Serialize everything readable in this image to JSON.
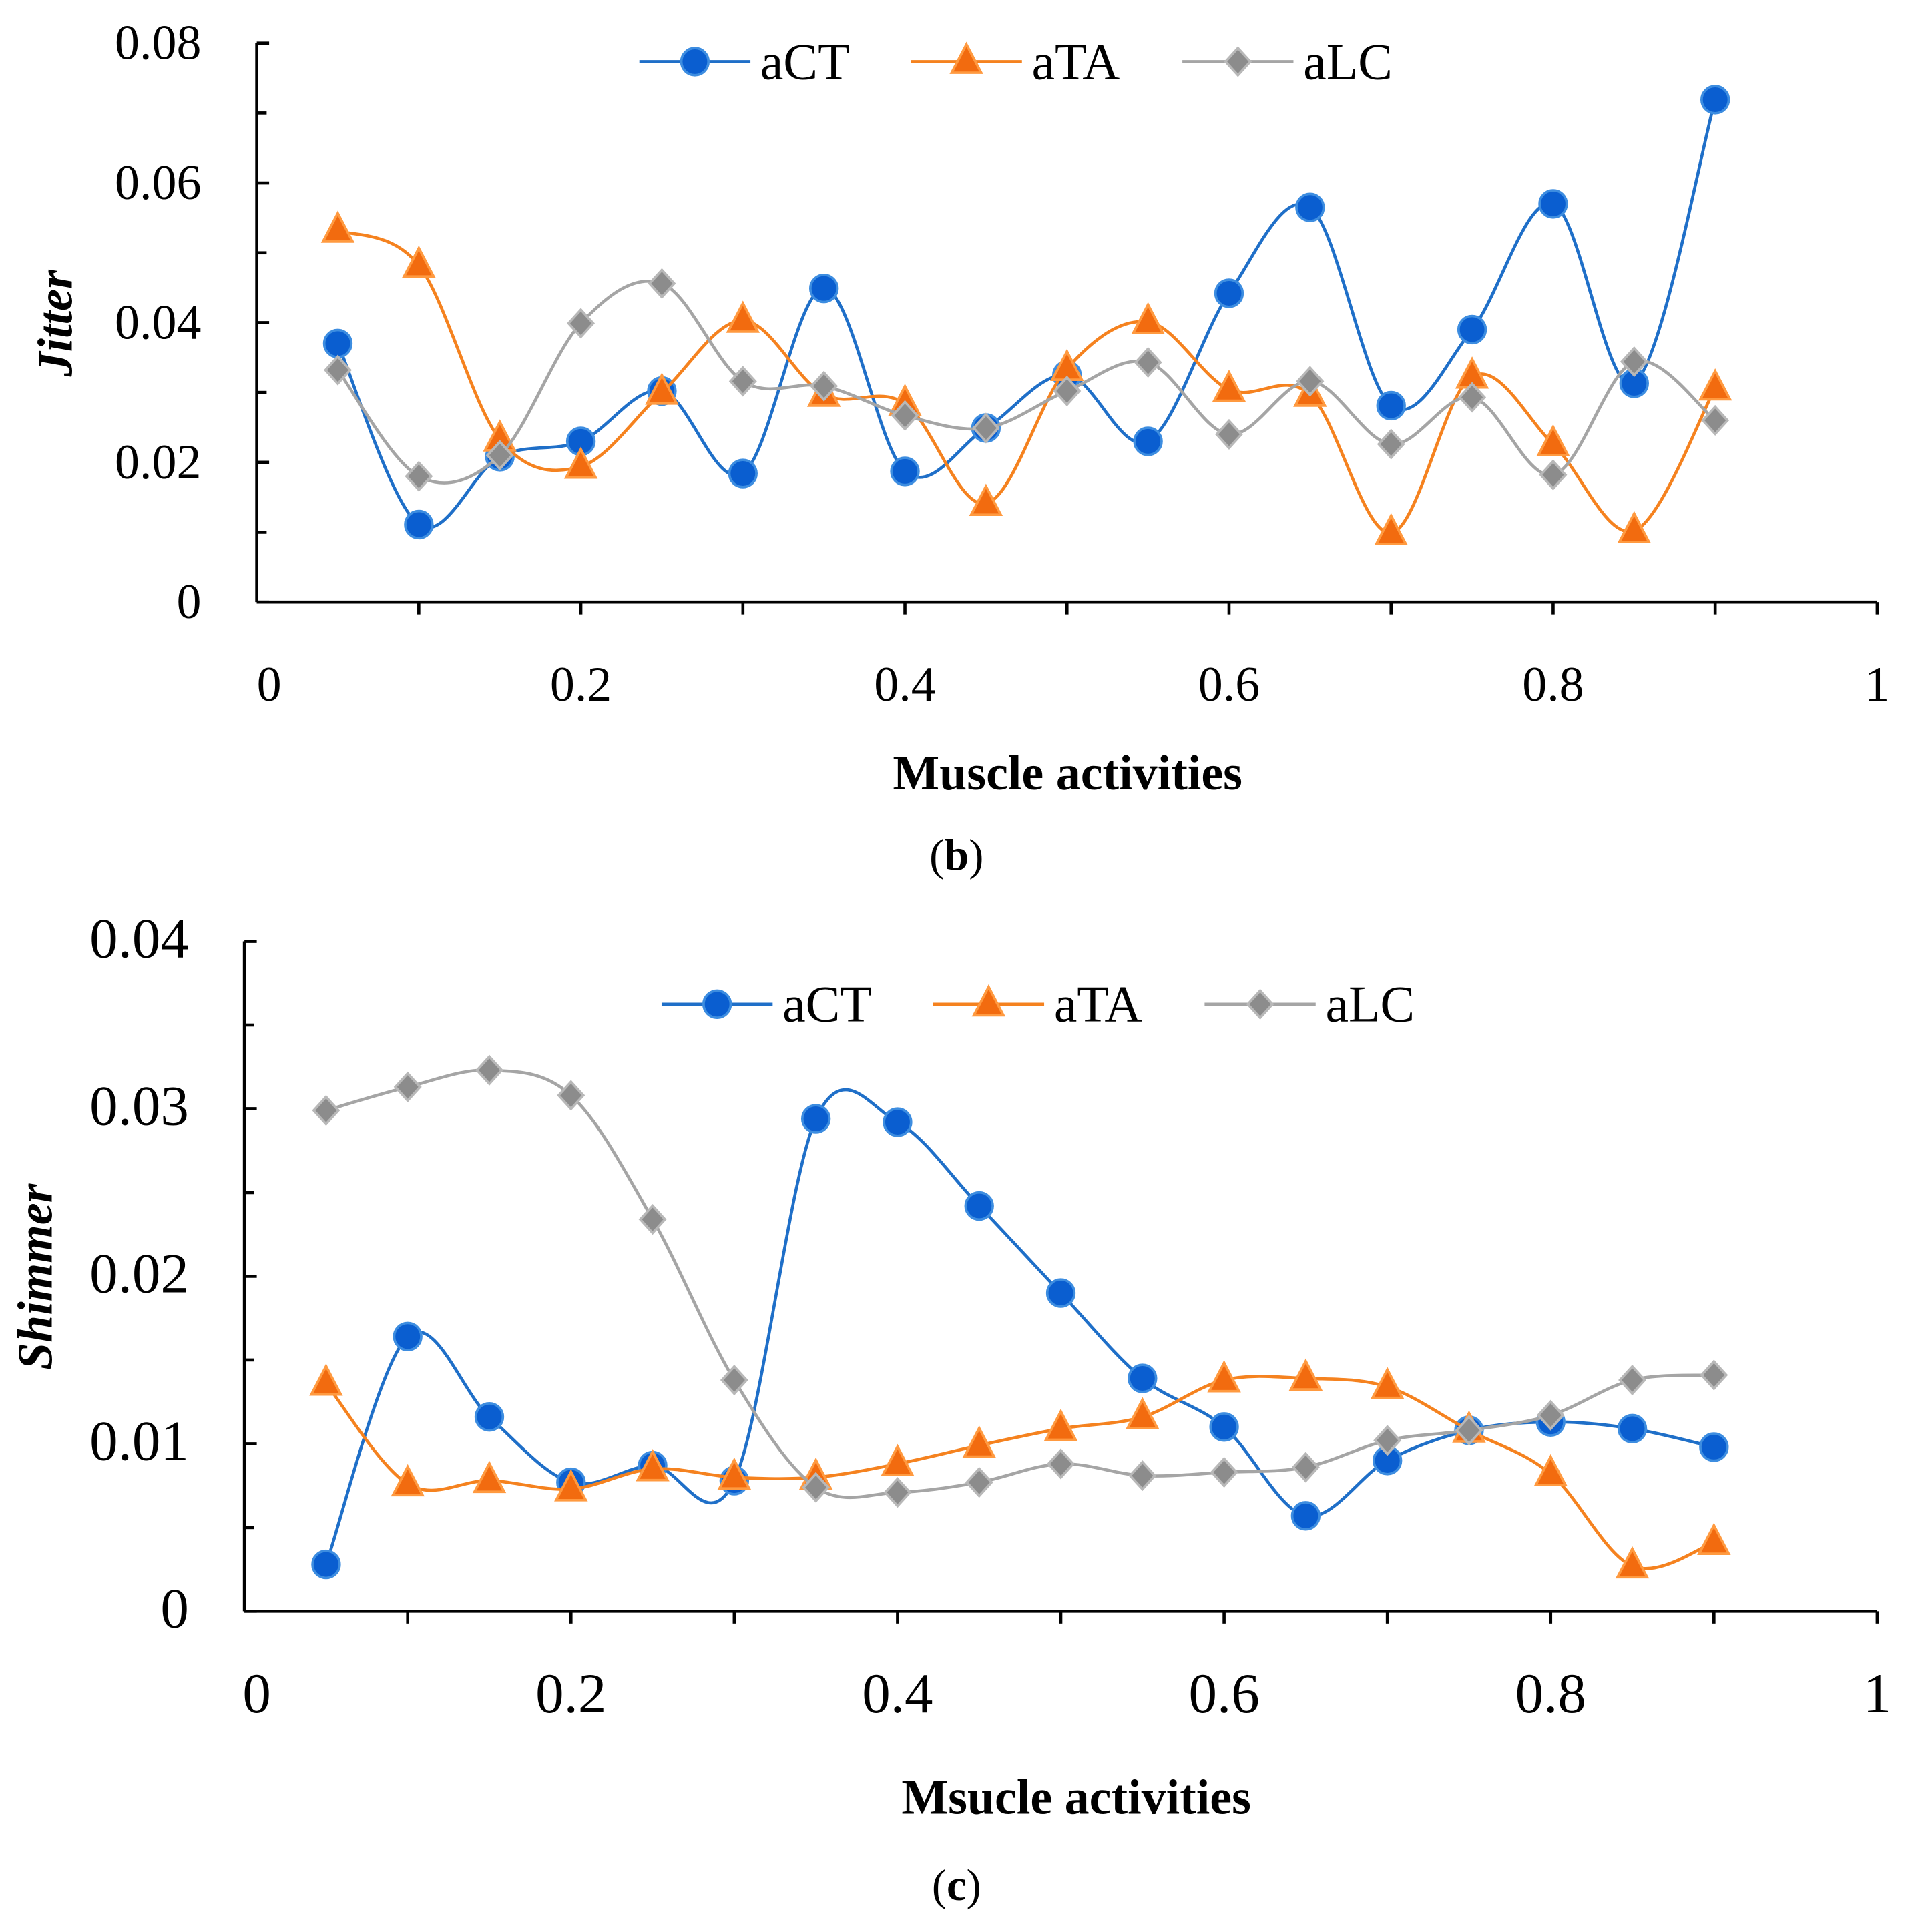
{
  "colors": {
    "aCT": "#1f6fc8",
    "aTA": "#f5821f",
    "aLC": "#a5a5a5",
    "aCT_marker": "#0a5ed0",
    "aTA_marker": "#f26b0f",
    "aLC_marker": "#8c8c8c"
  },
  "chart_data": [
    {
      "type": "line",
      "caption": "(b)",
      "caption_letter": "b",
      "xlabel": "Muscle activities",
      "ylabel": "Jitter",
      "xlim": [
        0,
        1
      ],
      "ylim": [
        0,
        0.08
      ],
      "xticks": [
        "0",
        "0.2",
        "0.4",
        "0.6",
        "0.8",
        "1"
      ],
      "yticks": [
        "0",
        "0.02",
        "0.04",
        "0.06",
        "0.08"
      ],
      "legend_position": "top-center",
      "x": [
        0.05,
        0.1,
        0.15,
        0.2,
        0.25,
        0.3,
        0.35,
        0.4,
        0.45,
        0.5,
        0.55,
        0.6,
        0.65,
        0.7,
        0.75,
        0.8,
        0.85,
        0.9
      ],
      "series": [
        {
          "name": "aCT",
          "marker": "circle",
          "values": [
            0.037,
            0.0111,
            0.0208,
            0.023,
            0.0302,
            0.0184,
            0.0449,
            0.0187,
            0.0249,
            0.0325,
            0.023,
            0.0442,
            0.0565,
            0.0281,
            0.039,
            0.057,
            0.0313,
            0.0719
          ]
        },
        {
          "name": "aTA",
          "marker": "triangle",
          "values": [
            0.0532,
            0.0482,
            0.0233,
            0.0194,
            0.03,
            0.0403,
            0.0297,
            0.0284,
            0.0141,
            0.0334,
            0.0401,
            0.0304,
            0.0297,
            0.0099,
            0.0323,
            0.0226,
            0.0102,
            0.0306
          ]
        },
        {
          "name": "aLC",
          "marker": "diamond",
          "values": [
            0.0332,
            0.018,
            0.021,
            0.0399,
            0.0456,
            0.0316,
            0.0309,
            0.0267,
            0.0249,
            0.0302,
            0.0343,
            0.024,
            0.0316,
            0.0226,
            0.0293,
            0.0182,
            0.0344,
            0.026
          ]
        }
      ]
    },
    {
      "type": "line",
      "caption": "(c)",
      "caption_letter": "c",
      "xlabel": "Msucle activities",
      "ylabel": "Shimmer",
      "xlim": [
        0,
        1
      ],
      "ylim": [
        0,
        0.04
      ],
      "xticks": [
        "0",
        "0.2",
        "0.4",
        "0.6",
        "0.8",
        "1"
      ],
      "yticks": [
        "0",
        "0.01",
        "0.02",
        "0.03",
        "0.04"
      ],
      "legend_position": "top-center",
      "x": [
        0.05,
        0.1,
        0.15,
        0.2,
        0.25,
        0.3,
        0.35,
        0.4,
        0.45,
        0.5,
        0.55,
        0.6,
        0.65,
        0.7,
        0.75,
        0.8,
        0.85,
        0.9
      ],
      "series": [
        {
          "name": "aCT",
          "marker": "circle",
          "values": [
            0.0028,
            0.0164,
            0.0116,
            0.0077,
            0.0087,
            0.0078,
            0.0294,
            0.0292,
            0.0242,
            0.019,
            0.0139,
            0.011,
            0.0057,
            0.009,
            0.0108,
            0.0113,
            0.0109,
            0.0098
          ]
        },
        {
          "name": "aTA",
          "marker": "triangle",
          "values": [
            0.0136,
            0.0076,
            0.0078,
            0.0073,
            0.0085,
            0.008,
            0.008,
            0.0088,
            0.0099,
            0.0109,
            0.0116,
            0.0138,
            0.0139,
            0.0134,
            0.0108,
            0.0082,
            0.0027,
            0.0041
          ]
        },
        {
          "name": "aLC",
          "marker": "diamond",
          "values": [
            0.0299,
            0.0313,
            0.0323,
            0.0308,
            0.0234,
            0.0138,
            0.0074,
            0.0071,
            0.0077,
            0.0088,
            0.0081,
            0.0083,
            0.0086,
            0.0102,
            0.0108,
            0.0117,
            0.0138,
            0.0141
          ]
        }
      ]
    }
  ]
}
